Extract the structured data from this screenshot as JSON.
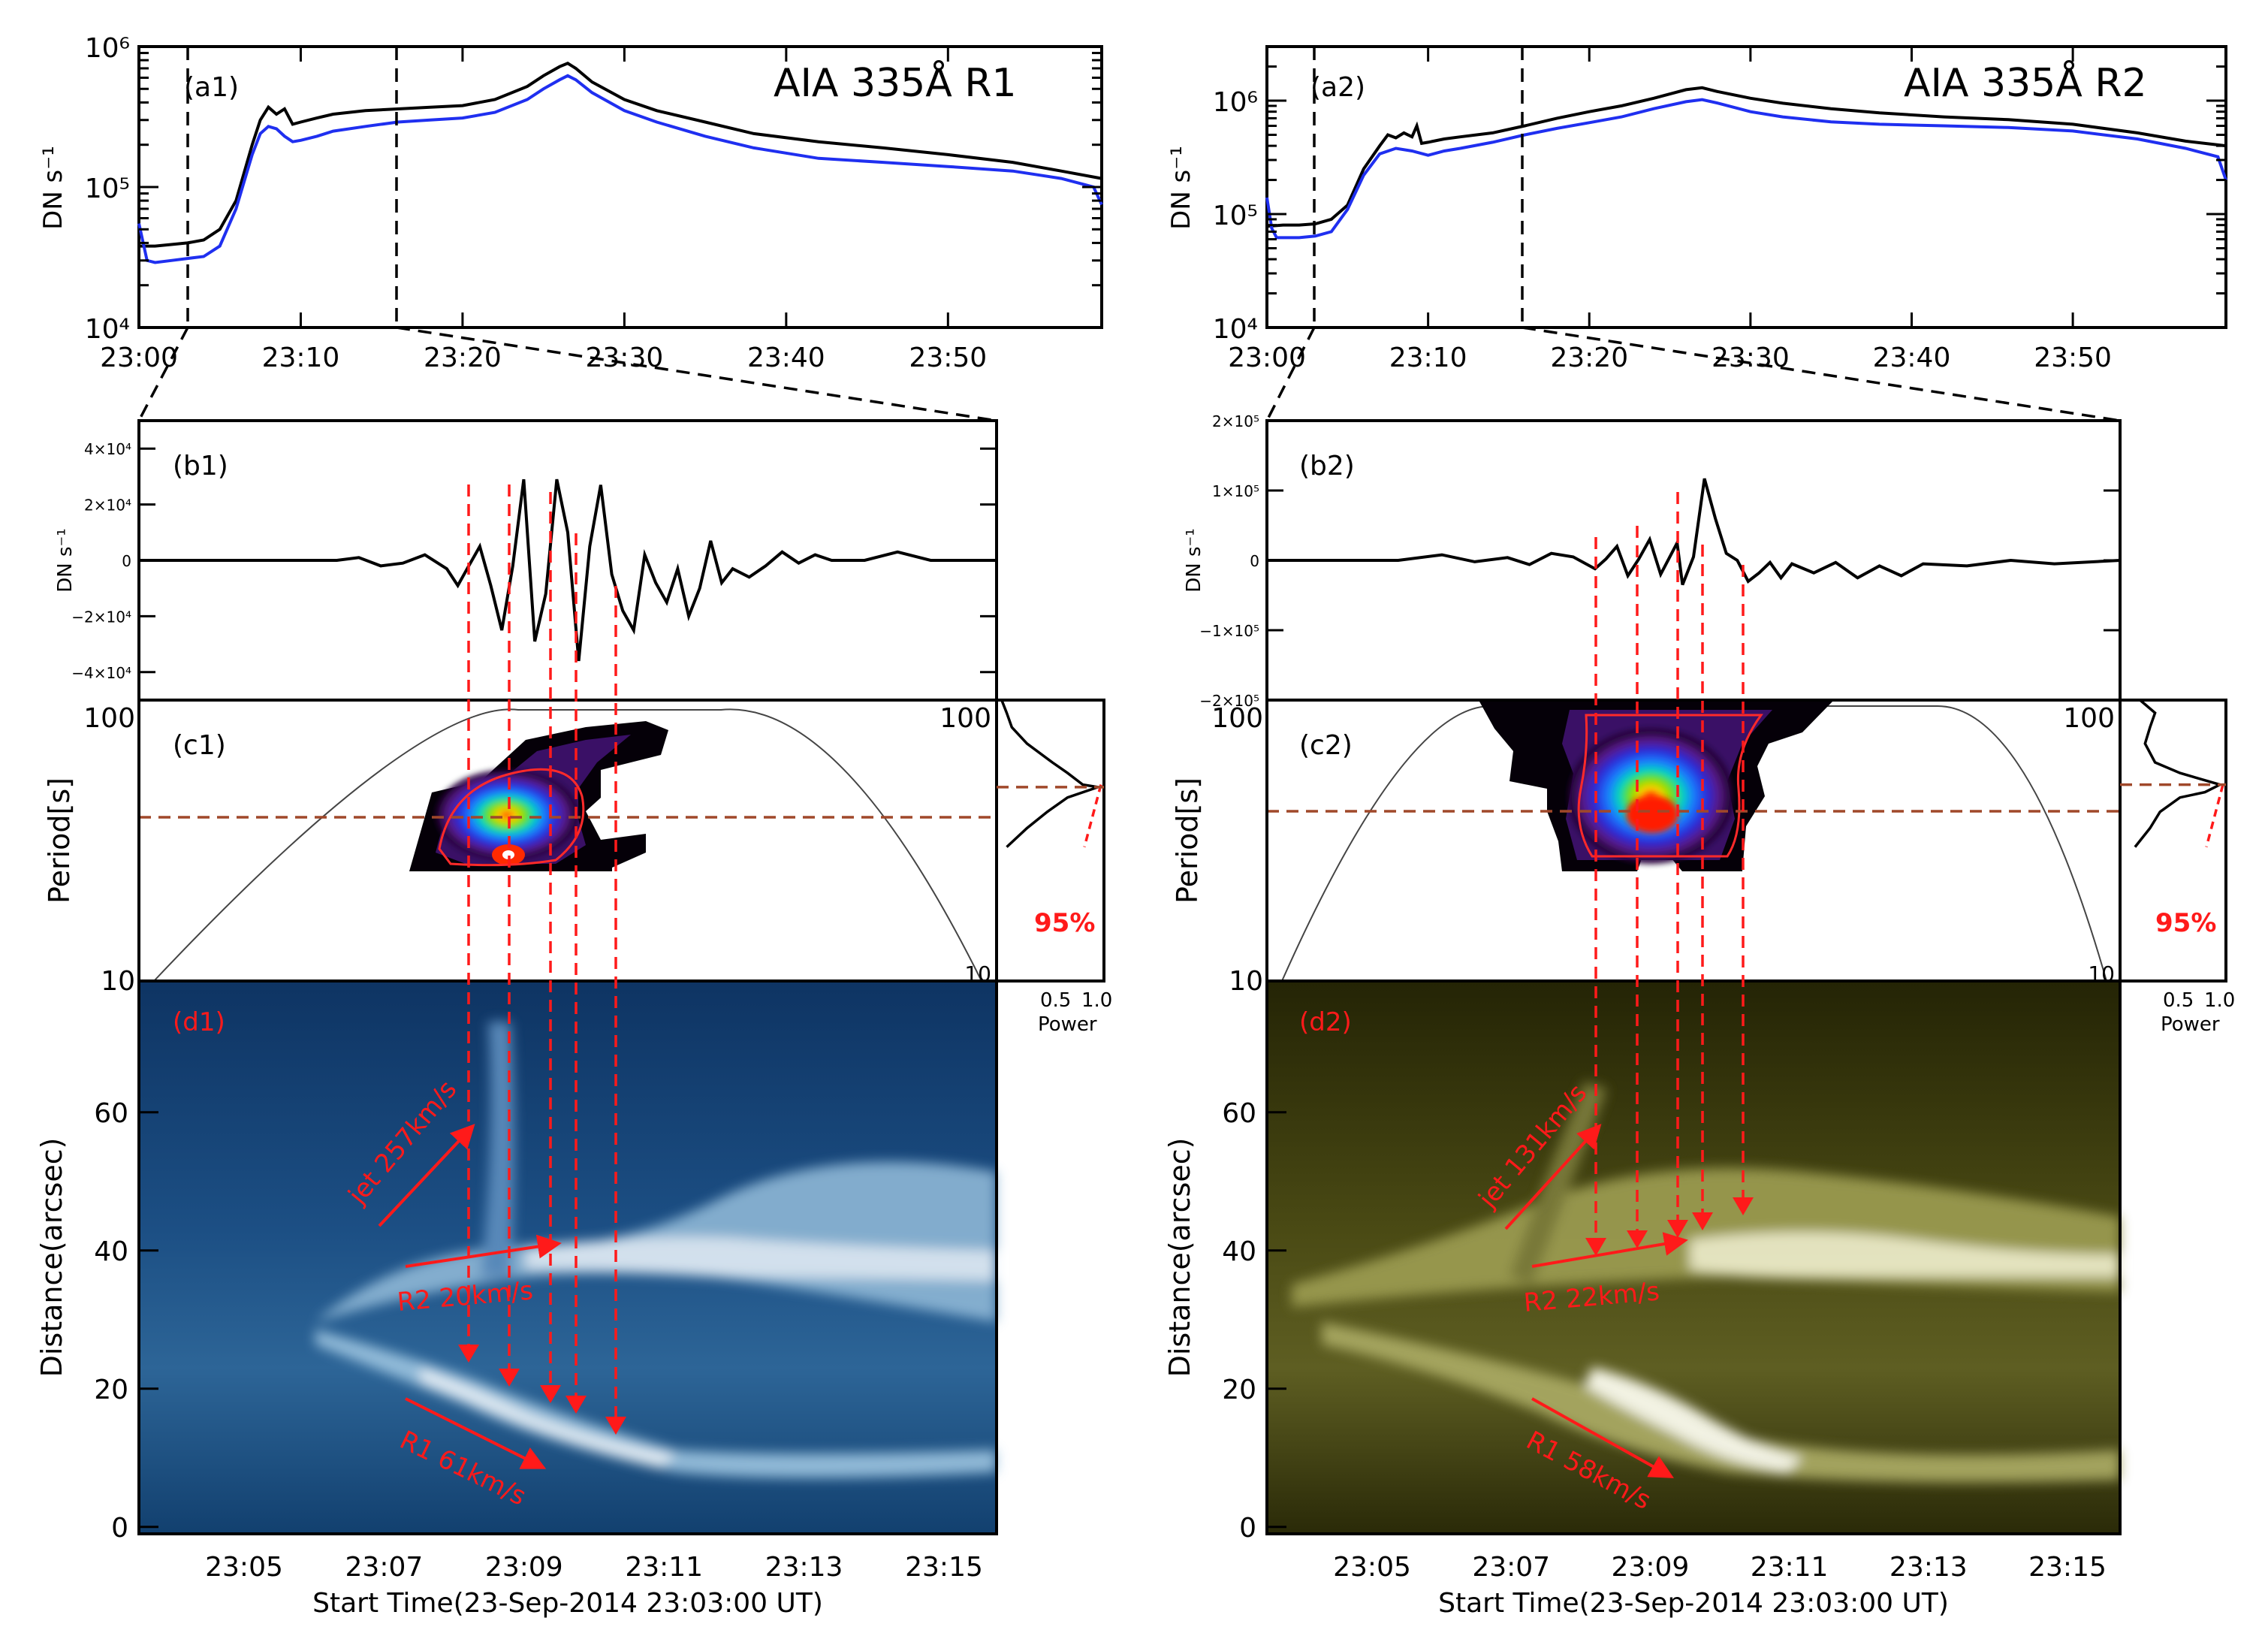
{
  "colors": {
    "black_curve": "#000000",
    "blue_curve": "#1f2ff0",
    "red": "#ff1a1a",
    "period_line": "#a0482a",
    "map_blue_dark": "#0d3a6e",
    "map_olive_dark": "#2a2a05"
  },
  "chart_data": [
    {
      "panel": "a1",
      "type": "line",
      "title": "AIA 335Å R1",
      "label": "(a1)",
      "ylabel": "DN s⁻¹",
      "yscale": "log",
      "ylim": [
        10000,
        1000000
      ],
      "yticks": [
        "10⁴",
        "10⁵",
        "10⁶"
      ],
      "xticks": [
        "23:00",
        "23:10",
        "23:20",
        "23:30",
        "23:40",
        "23:50"
      ],
      "xlim_minutes": [
        0,
        59.5
      ],
      "vlines_minutes": [
        3,
        16
      ],
      "series": [
        {
          "name": "black",
          "x": [
            0,
            1,
            2,
            3,
            4,
            5,
            6,
            7,
            7.5,
            8,
            8.5,
            9,
            9.5,
            10,
            11,
            12,
            14,
            16,
            18,
            20,
            22,
            24,
            25,
            26,
            26.5,
            27,
            28,
            30,
            32,
            35,
            38,
            42,
            46,
            50,
            54,
            57,
            59.5
          ],
          "y": [
            38000,
            38000,
            39000,
            40000,
            42000,
            50000,
            80000,
            200000,
            300000,
            370000,
            330000,
            360000,
            280000,
            290000,
            310000,
            330000,
            350000,
            360000,
            370000,
            380000,
            420000,
            520000,
            620000,
            720000,
            760000,
            700000,
            560000,
            420000,
            350000,
            290000,
            240000,
            210000,
            190000,
            170000,
            150000,
            130000,
            115000
          ]
        },
        {
          "name": "blue",
          "x": [
            0,
            0.5,
            1,
            2,
            3,
            4,
            5,
            6,
            7,
            7.5,
            8,
            8.5,
            9,
            9.5,
            10,
            11,
            12,
            14,
            16,
            18,
            20,
            22,
            24,
            25,
            26,
            26.5,
            27,
            28,
            30,
            32,
            35,
            38,
            42,
            46,
            50,
            54,
            57,
            59,
            59.5
          ],
          "y": [
            55000,
            30000,
            29000,
            30000,
            31000,
            32000,
            38000,
            70000,
            170000,
            240000,
            270000,
            260000,
            230000,
            210000,
            215000,
            230000,
            250000,
            270000,
            290000,
            300000,
            310000,
            340000,
            420000,
            500000,
            580000,
            620000,
            580000,
            470000,
            350000,
            290000,
            230000,
            190000,
            160000,
            150000,
            140000,
            130000,
            115000,
            100000,
            75000
          ]
        }
      ]
    },
    {
      "panel": "a2",
      "type": "line",
      "title": "AIA 335Å R2",
      "label": "(a2)",
      "ylabel": "DN s⁻¹",
      "yscale": "log",
      "ylim": [
        10000,
        3000000
      ],
      "yticks": [
        "10⁴",
        "10⁵",
        "10⁶"
      ],
      "xticks": [
        "23:00",
        "23:10",
        "23:20",
        "23:30",
        "23:40",
        "23:50"
      ],
      "xlim_minutes": [
        0,
        59.5
      ],
      "vlines_minutes": [
        3,
        16
      ],
      "series": [
        {
          "name": "black",
          "x": [
            0,
            1,
            2,
            3,
            4,
            5,
            6,
            7,
            7.5,
            8,
            8.5,
            9,
            9.3,
            9.6,
            10,
            11,
            12,
            14,
            16,
            18,
            20,
            22,
            24,
            26,
            27,
            28,
            30,
            32,
            35,
            38,
            42,
            46,
            50,
            54,
            57,
            59.5
          ],
          "y": [
            78000,
            80000,
            80000,
            82000,
            90000,
            120000,
            250000,
            400000,
            500000,
            470000,
            520000,
            480000,
            600000,
            420000,
            430000,
            460000,
            480000,
            520000,
            600000,
            700000,
            800000,
            900000,
            1050000,
            1250000,
            1300000,
            1200000,
            1050000,
            950000,
            850000,
            780000,
            720000,
            680000,
            620000,
            520000,
            440000,
            400000
          ]
        },
        {
          "name": "blue",
          "x": [
            0,
            0.3,
            0.6,
            1,
            2,
            3,
            4,
            5,
            6,
            7,
            8,
            9,
            10,
            11,
            12,
            14,
            16,
            18,
            20,
            22,
            24,
            26,
            27,
            28,
            30,
            32,
            35,
            38,
            42,
            46,
            50,
            54,
            57,
            59,
            59.5
          ],
          "y": [
            140000,
            75000,
            62000,
            62000,
            62000,
            64000,
            70000,
            110000,
            220000,
            340000,
            380000,
            360000,
            330000,
            360000,
            380000,
            430000,
            500000,
            570000,
            640000,
            720000,
            850000,
            980000,
            1020000,
            950000,
            800000,
            720000,
            650000,
            620000,
            600000,
            580000,
            540000,
            460000,
            380000,
            320000,
            200000
          ]
        }
      ]
    },
    {
      "panel": "b1",
      "type": "line",
      "label": "(b1)",
      "ylabel": "DN s⁻¹",
      "ylim": [
        -50000,
        50000
      ],
      "yticks": [
        "4×10⁴",
        "2×10⁴",
        "0",
        "−2×10⁴",
        "−4×10⁴"
      ],
      "xlim_seconds": [
        0,
        780
      ],
      "series": [
        {
          "name": "detrended",
          "x": [
            0,
            60,
            120,
            180,
            200,
            220,
            240,
            260,
            280,
            290,
            300,
            310,
            320,
            330,
            340,
            350,
            360,
            370,
            380,
            390,
            400,
            410,
            420,
            430,
            440,
            450,
            460,
            470,
            480,
            490,
            500,
            510,
            520,
            530,
            540,
            555,
            570,
            585,
            600,
            615,
            630,
            660,
            690,
            720,
            750,
            780
          ],
          "y": [
            0,
            0,
            0,
            0,
            1000,
            -2000,
            -1000,
            2000,
            -3000,
            -9000,
            -2000,
            5000,
            -9000,
            -25000,
            -2000,
            29000,
            -29000,
            -12000,
            29000,
            10000,
            -36000,
            5000,
            27000,
            -5000,
            -18000,
            -25000,
            2000,
            -8000,
            -15000,
            -3000,
            -20000,
            -10000,
            7000,
            -8000,
            -3000,
            -6000,
            -2000,
            3000,
            -1000,
            2000,
            0,
            0,
            3000,
            0,
            0,
            0
          ]
        }
      ]
    },
    {
      "panel": "b2",
      "type": "line",
      "label": "(b2)",
      "ylabel": "DN s⁻¹",
      "ylim": [
        -200000,
        200000
      ],
      "yticks": [
        "2×10⁵",
        "1×10⁵",
        "0",
        "−1×10⁵",
        "−2×10⁵"
      ],
      "xlim_seconds": [
        0,
        780
      ],
      "series": [
        {
          "name": "detrended",
          "x": [
            0,
            60,
            120,
            160,
            190,
            220,
            240,
            260,
            280,
            300,
            310,
            320,
            330,
            340,
            350,
            360,
            370,
            375,
            380,
            390,
            400,
            410,
            420,
            430,
            440,
            450,
            460,
            470,
            480,
            500,
            520,
            540,
            560,
            580,
            600,
            640,
            680,
            720,
            780
          ],
          "y": [
            0,
            0,
            0,
            8000,
            -2000,
            4000,
            -6000,
            10000,
            5000,
            -12000,
            2000,
            20000,
            -22000,
            2000,
            30000,
            -20000,
            10000,
            25000,
            -35000,
            5000,
            117000,
            60000,
            10000,
            0,
            -30000,
            -18000,
            -3000,
            -25000,
            -5000,
            -18000,
            -3000,
            -25000,
            -8000,
            -22000,
            -5000,
            -8000,
            0,
            -5000,
            0
          ]
        }
      ]
    },
    {
      "panel": "c1",
      "type": "heatmap",
      "label": "(c1)",
      "ylabel": "Period[s]",
      "yscale": "log",
      "ylim": [
        10,
        100
      ],
      "yticks": [
        "10",
        "100"
      ],
      "xlim_seconds": [
        0,
        780
      ],
      "significance": "95%",
      "peak_period_s": 49,
      "global_power": {
        "xlabel": "Power",
        "xticks": [
          "0.5",
          "1.0"
        ],
        "period": [
          100,
          90,
          80,
          70,
          60,
          55,
          50,
          49,
          45,
          40,
          35,
          30
        ],
        "power": [
          0.05,
          0.1,
          0.15,
          0.3,
          0.55,
          0.7,
          0.85,
          1.0,
          0.7,
          0.5,
          0.3,
          0.1
        ]
      }
    },
    {
      "panel": "c2",
      "type": "heatmap",
      "label": "(c2)",
      "ylabel": "Period[s]",
      "yscale": "log",
      "ylim": [
        10,
        100
      ],
      "yticks": [
        "10",
        "100"
      ],
      "xlim_seconds": [
        0,
        780
      ],
      "significance": "95%",
      "peak_period_s": 50,
      "global_power": {
        "xlabel": "Power",
        "xticks": [
          "0.5",
          "1.0"
        ],
        "period": [
          100,
          90,
          80,
          70,
          60,
          55,
          50,
          47,
          45,
          40,
          35,
          30
        ],
        "power": [
          0.2,
          0.35,
          0.3,
          0.25,
          0.35,
          0.6,
          1.0,
          0.85,
          0.6,
          0.4,
          0.3,
          0.15
        ]
      }
    },
    {
      "panel": "d1",
      "type": "heatmap",
      "label": "(d1)",
      "xlabel": "Start Time(23-Sep-2014 23:03:00 UT)",
      "ylabel": "Distance(arcsec)",
      "xticks": [
        "23:05",
        "23:07",
        "23:09",
        "23:11",
        "23:13",
        "23:15"
      ],
      "yticks": [
        "0",
        "20",
        "40",
        "60"
      ],
      "ylim": [
        -1,
        79
      ],
      "annotations": [
        "jet 257km/s",
        "R2 20km/s",
        "R1 61km/s"
      ]
    },
    {
      "panel": "d2",
      "type": "heatmap",
      "label": "(d2)",
      "xlabel": "Start Time(23-Sep-2014 23:03:00 UT)",
      "ylabel": "Distance(arcsec)",
      "xticks": [
        "23:05",
        "23:07",
        "23:09",
        "23:11",
        "23:13",
        "23:15"
      ],
      "yticks": [
        "0",
        "20",
        "40",
        "60"
      ],
      "ylim": [
        -1,
        79
      ],
      "annotations": [
        "jet 131km/s",
        "R2 22km/s",
        "R1 58km/s"
      ]
    }
  ]
}
